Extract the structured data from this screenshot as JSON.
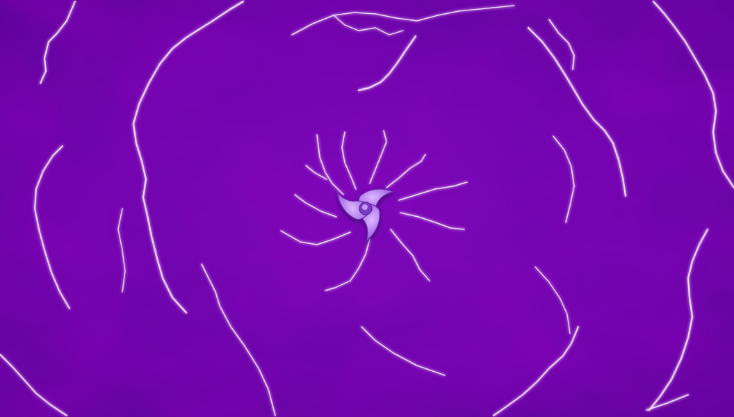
{
  "scene": {
    "icon": "electro-element-emblem-icon",
    "colors": {
      "background": "#6e04ad",
      "background_dark": "#5a0395",
      "bolt": "#f1dcff",
      "bolt_glow": "#c98bff",
      "emblem_fill": "#b47ef0",
      "emblem_highlight": "#dcb8ff",
      "emblem_shadow": "#5b1d96"
    }
  }
}
